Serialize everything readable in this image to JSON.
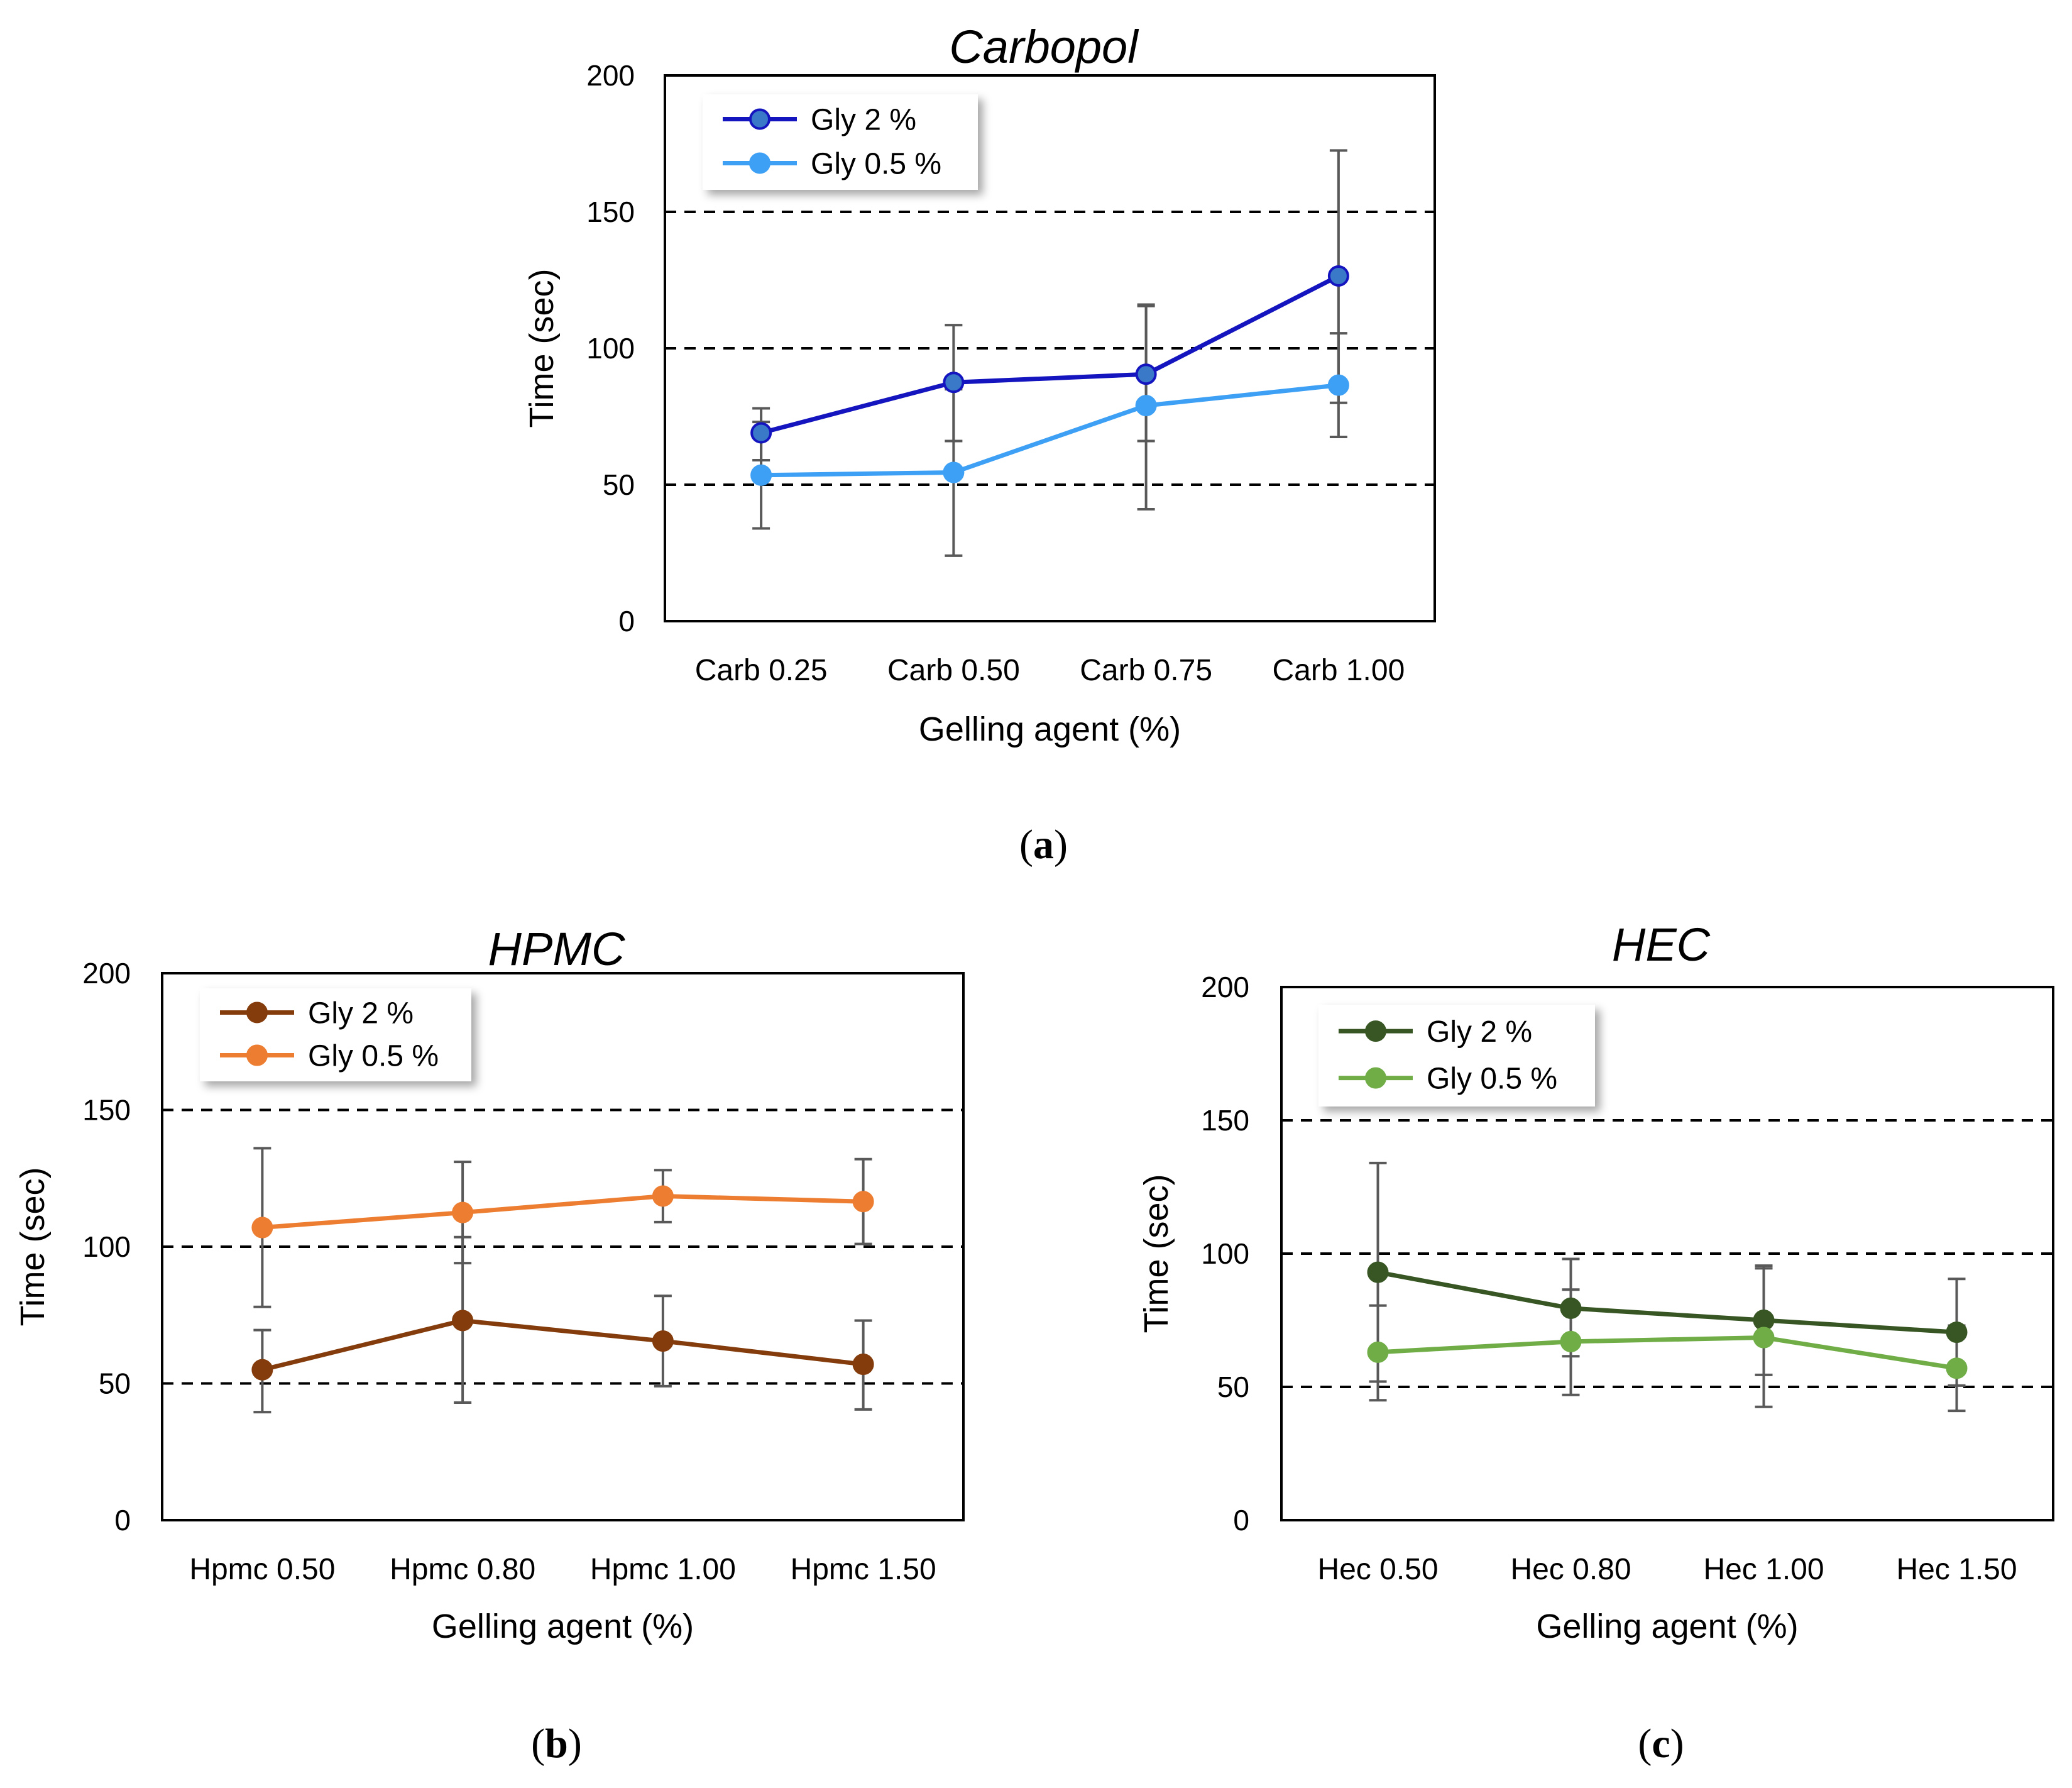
{
  "chart_data": [
    {
      "type": "line",
      "panel_label": "a",
      "title": "Carbopol",
      "xlabel": "Gelling agent (%)",
      "ylabel": "Time (sec)",
      "categories": [
        "Carb 0.25",
        "Carb 0.50",
        "Carb 0.75",
        "Carb 1.00"
      ],
      "ylim": [
        0,
        200
      ],
      "yticks": [
        0,
        50,
        100,
        150,
        200
      ],
      "gridlines": [
        50,
        100,
        150
      ],
      "legend_position": "top-left",
      "series": [
        {
          "name": "Gly 2 %",
          "color": "#1515c0",
          "marker_fill": "#3a78c8",
          "values": [
            69,
            87.5,
            90.5,
            126.5
          ],
          "err_low": [
            59,
            66,
            66,
            80
          ],
          "err_high": [
            78,
            108.5,
            115.5,
            172.5
          ]
        },
        {
          "name": "Gly 0.5 %",
          "color": "#3da0f5",
          "marker_fill": "#3da0f5",
          "values": [
            53.5,
            54.5,
            79,
            86.5
          ],
          "err_low": [
            34,
            24,
            41,
            67.5
          ],
          "err_high": [
            73,
            85,
            116,
            105.5
          ]
        }
      ]
    },
    {
      "type": "line",
      "panel_label": "b",
      "title": "HPMC",
      "xlabel": "Gelling agent (%)",
      "ylabel": "Time (sec)",
      "categories": [
        "Hpmc 0.50",
        "Hpmc 0.80",
        "Hpmc 1.00",
        "Hpmc 1.50"
      ],
      "ylim": [
        0,
        200
      ],
      "yticks": [
        0,
        50,
        100,
        150,
        200
      ],
      "gridlines": [
        50,
        100,
        150
      ],
      "legend_position": "top-left",
      "series": [
        {
          "name": "Gly 2 %",
          "color": "#843c0c",
          "marker_fill": "#843c0c",
          "values": [
            55,
            73,
            65.5,
            57
          ],
          "err_low": [
            39.5,
            43,
            49,
            40.5
          ],
          "err_high": [
            69.5,
            103.5,
            82,
            73
          ]
        },
        {
          "name": "Gly 0.5 %",
          "color": "#ed7d31",
          "marker_fill": "#ed7d31",
          "values": [
            107,
            112.5,
            118.5,
            116.5
          ],
          "err_low": [
            78,
            94,
            109,
            101
          ],
          "err_high": [
            136,
            131,
            128,
            132
          ]
        }
      ]
    },
    {
      "type": "line",
      "panel_label": "c",
      "title": "HEC",
      "xlabel": "Gelling agent (%)",
      "ylabel": "Time (sec)",
      "categories": [
        "Hec 0.50",
        "Hec 0.80",
        "Hec 1.00",
        "Hec 1.50"
      ],
      "ylim": [
        0,
        200
      ],
      "yticks": [
        0,
        50,
        100,
        150,
        200
      ],
      "gridlines": [
        50,
        100,
        150
      ],
      "legend_position": "top-left",
      "series": [
        {
          "name": "Gly 2 %",
          "color": "#375623",
          "marker_fill": "#375623",
          "values": [
            93,
            79.5,
            75,
            70.5
          ],
          "err_low": [
            52,
            61.5,
            54.5,
            50.5
          ],
          "err_high": [
            134,
            98,
            95.5,
            90.5
          ]
        },
        {
          "name": "Gly 0.5 %",
          "color": "#70ad47",
          "marker_fill": "#70ad47",
          "values": [
            63,
            67,
            68.5,
            57
          ],
          "err_low": [
            45,
            47,
            42.5,
            41
          ],
          "err_high": [
            80.5,
            86.5,
            94.5,
            73
          ]
        }
      ]
    }
  ]
}
